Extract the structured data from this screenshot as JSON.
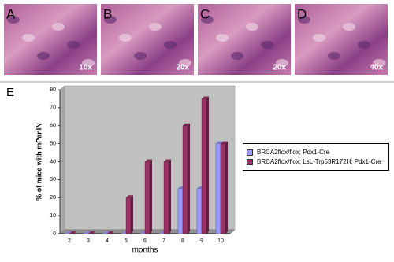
{
  "panels": [
    {
      "label": "A",
      "magnification": "10x"
    },
    {
      "label": "B",
      "magnification": "20x"
    },
    {
      "label": "C",
      "magnification": "20x"
    },
    {
      "label": "D",
      "magnification": "40x"
    }
  ],
  "chart_data": {
    "type": "bar3d",
    "panel_label": "E",
    "y_label": "% of mice with mPanIN",
    "x_label": "months",
    "categories": [
      2,
      3,
      4,
      5,
      6,
      7,
      8,
      9,
      10
    ],
    "series": [
      {
        "name": "BRCA2flox/flox; Pdx1-Cre",
        "color": "#9999ff",
        "values": [
          0,
          0,
          0,
          0,
          0,
          0,
          25,
          25,
          50
        ]
      },
      {
        "name": "BRCA2flox/flox; LsL-Trp53R172H; Pdx1-Cre",
        "color": "#993366",
        "values": [
          0,
          0,
          0,
          20,
          40,
          40,
          60,
          75,
          50
        ]
      }
    ],
    "ylim": [
      0,
      80
    ],
    "yticks": [
      0,
      10,
      20,
      30,
      40,
      50,
      60,
      70,
      80
    ],
    "grid": false
  }
}
